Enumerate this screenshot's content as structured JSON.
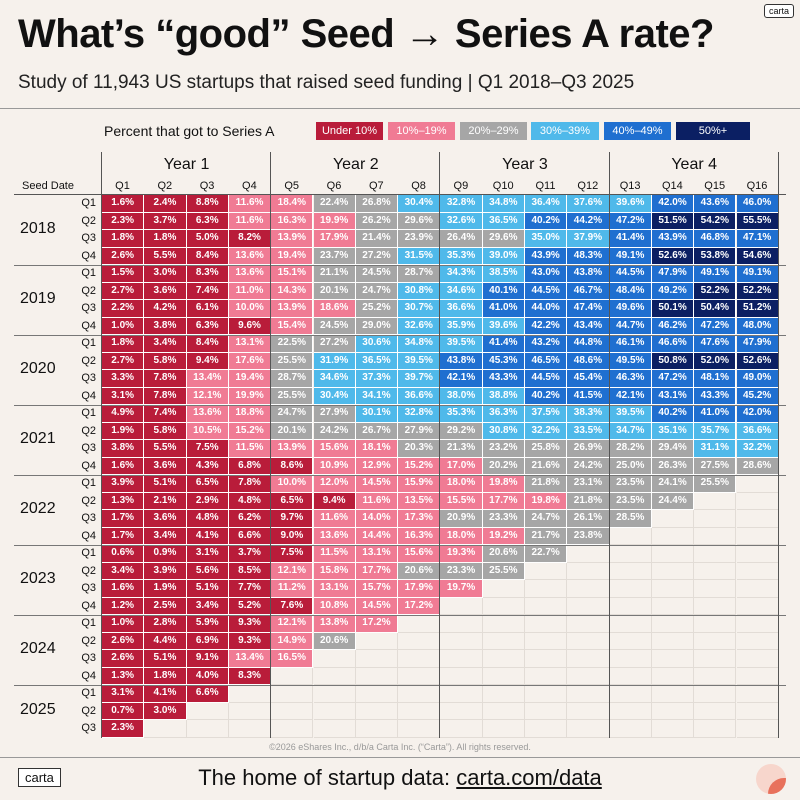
{
  "badge": "carta",
  "title": "What’s “good” Seed → Series A rate?",
  "subtitle": "Study of 11,943 US startups that raised seed funding | Q1 2018–Q3 2025",
  "legend": {
    "label": "Percent that got to Series A",
    "items": [
      {
        "label": "Under 10%",
        "color": "#b91c3a",
        "text": "#ffffff"
      },
      {
        "label": "10%–19%",
        "color": "#f07b94",
        "text": "#ffffff"
      },
      {
        "label": "20%–29%",
        "color": "#a6a6a6",
        "text": "#ffffff"
      },
      {
        "label": "30%–39%",
        "color": "#4fb9ea",
        "text": "#ffffff"
      },
      {
        "label": "40%–49%",
        "color": "#1f6fd0",
        "text": "#ffffff"
      },
      {
        "label": "50%+",
        "color": "#0b1f63",
        "text": "#ffffff"
      }
    ]
  },
  "copyright": "©2026 eShares Inc., d/b/a Carta Inc. (“Carta”). All rights reserved.",
  "footer": {
    "logo_text": "carta",
    "text": "The home of startup data: ",
    "link": "carta.com/data"
  },
  "chart_data": {
    "type": "heatmap",
    "title": "What’s “good” Seed → Series A rate?",
    "row_axis_label": "Seed Date",
    "year_groups": [
      "Year 1",
      "Year 2",
      "Year 3",
      "Year 4"
    ],
    "columns": [
      "Q1",
      "Q2",
      "Q3",
      "Q4",
      "Q5",
      "Q6",
      "Q7",
      "Q8",
      "Q9",
      "Q10",
      "Q11",
      "Q12",
      "Q13",
      "Q14",
      "Q15",
      "Q16"
    ],
    "years": [
      "2018",
      "2019",
      "2020",
      "2021",
      "2022",
      "2023",
      "2024",
      "2025"
    ],
    "rows": [
      {
        "year": "2018",
        "q": "Q1",
        "values": [
          "1.6%",
          "2.4%",
          "8.8%",
          "11.6%",
          "18.4%",
          "22.4%",
          "26.8%",
          "30.4%",
          "32.8%",
          "34.8%",
          "36.4%",
          "37.6%",
          "39.6%",
          "42.0%",
          "43.6%",
          "46.0%"
        ]
      },
      {
        "year": "2018",
        "q": "Q2",
        "values": [
          "2.3%",
          "3.7%",
          "6.3%",
          "11.6%",
          "16.3%",
          "19.9%",
          "26.2%",
          "29.6%",
          "32.6%",
          "36.5%",
          "40.2%",
          "44.2%",
          "47.2%",
          "51.5%",
          "54.2%",
          "55.5%"
        ]
      },
      {
        "year": "2018",
        "q": "Q3",
        "values": [
          "1.8%",
          "1.8%",
          "5.0%",
          "8.2%",
          "13.9%",
          "17.9%",
          "21.4%",
          "23.9%",
          "26.4%",
          "29.6%",
          "35.0%",
          "37.9%",
          "41.4%",
          "43.9%",
          "46.8%",
          "47.1%"
        ]
      },
      {
        "year": "2018",
        "q": "Q4",
        "values": [
          "2.6%",
          "5.5%",
          "8.4%",
          "13.6%",
          "19.4%",
          "23.7%",
          "27.2%",
          "31.5%",
          "35.3%",
          "39.0%",
          "43.9%",
          "48.3%",
          "49.1%",
          "52.6%",
          "53.8%",
          "54.6%"
        ]
      },
      {
        "year": "2019",
        "q": "Q1",
        "values": [
          "1.5%",
          "3.0%",
          "8.3%",
          "13.6%",
          "15.1%",
          "21.1%",
          "24.5%",
          "28.7%",
          "34.3%",
          "38.5%",
          "43.0%",
          "43.8%",
          "44.5%",
          "47.9%",
          "49.1%",
          "49.1%"
        ]
      },
      {
        "year": "2019",
        "q": "Q2",
        "values": [
          "2.7%",
          "3.6%",
          "7.4%",
          "11.0%",
          "14.3%",
          "20.1%",
          "24.7%",
          "30.8%",
          "34.6%",
          "40.1%",
          "44.5%",
          "46.7%",
          "48.4%",
          "49.2%",
          "52.2%",
          "52.2%"
        ]
      },
      {
        "year": "2019",
        "q": "Q3",
        "values": [
          "2.2%",
          "4.2%",
          "6.1%",
          "10.0%",
          "13.9%",
          "18.6%",
          "25.2%",
          "30.7%",
          "36.6%",
          "41.0%",
          "44.0%",
          "47.4%",
          "49.6%",
          "50.1%",
          "50.4%",
          "51.2%"
        ]
      },
      {
        "year": "2019",
        "q": "Q4",
        "values": [
          "1.0%",
          "3.8%",
          "6.3%",
          "9.6%",
          "15.4%",
          "24.5%",
          "29.0%",
          "32.6%",
          "35.9%",
          "39.6%",
          "42.2%",
          "43.4%",
          "44.7%",
          "46.2%",
          "47.2%",
          "48.0%"
        ]
      },
      {
        "year": "2020",
        "q": "Q1",
        "values": [
          "1.8%",
          "3.4%",
          "8.4%",
          "13.1%",
          "22.5%",
          "27.2%",
          "30.6%",
          "34.8%",
          "39.5%",
          "41.4%",
          "43.2%",
          "44.8%",
          "46.1%",
          "46.6%",
          "47.6%",
          "47.9%"
        ]
      },
      {
        "year": "2020",
        "q": "Q2",
        "values": [
          "2.7%",
          "5.8%",
          "9.4%",
          "17.6%",
          "25.5%",
          "31.9%",
          "36.5%",
          "39.5%",
          "43.8%",
          "45.3%",
          "46.5%",
          "48.6%",
          "49.5%",
          "50.8%",
          "52.0%",
          "52.6%"
        ]
      },
      {
        "year": "2020",
        "q": "Q3",
        "values": [
          "3.3%",
          "7.8%",
          "13.4%",
          "19.4%",
          "28.7%",
          "34.6%",
          "37.3%",
          "39.7%",
          "42.1%",
          "43.3%",
          "44.5%",
          "45.4%",
          "46.3%",
          "47.2%",
          "48.1%",
          "49.0%"
        ]
      },
      {
        "year": "2020",
        "q": "Q4",
        "values": [
          "3.1%",
          "7.8%",
          "12.1%",
          "19.9%",
          "25.5%",
          "30.4%",
          "34.1%",
          "36.6%",
          "38.0%",
          "38.8%",
          "40.2%",
          "41.5%",
          "42.1%",
          "43.1%",
          "43.3%",
          "45.2%"
        ]
      },
      {
        "year": "2021",
        "q": "Q1",
        "values": [
          "4.9%",
          "7.4%",
          "13.6%",
          "18.8%",
          "24.7%",
          "27.9%",
          "30.1%",
          "32.8%",
          "35.3%",
          "36.3%",
          "37.5%",
          "38.3%",
          "39.5%",
          "40.2%",
          "41.0%",
          "42.0%"
        ]
      },
      {
        "year": "2021",
        "q": "Q2",
        "values": [
          "1.9%",
          "5.8%",
          "10.5%",
          "15.2%",
          "20.1%",
          "24.2%",
          "26.7%",
          "27.9%",
          "29.2%",
          "30.8%",
          "32.2%",
          "33.5%",
          "34.7%",
          "35.1%",
          "35.7%",
          "36.6%"
        ]
      },
      {
        "year": "2021",
        "q": "Q3",
        "values": [
          "3.8%",
          "5.5%",
          "7.5%",
          "11.5%",
          "13.9%",
          "15.6%",
          "18.1%",
          "20.3%",
          "21.3%",
          "23.2%",
          "25.8%",
          "26.9%",
          "28.2%",
          "29.4%",
          "31.1%",
          "32.2%"
        ]
      },
      {
        "year": "2021",
        "q": "Q4",
        "values": [
          "1.6%",
          "3.6%",
          "4.3%",
          "6.8%",
          "8.6%",
          "10.9%",
          "12.9%",
          "15.2%",
          "17.0%",
          "20.2%",
          "21.6%",
          "24.2%",
          "25.0%",
          "26.3%",
          "27.5%",
          "28.6%"
        ]
      },
      {
        "year": "2022",
        "q": "Q1",
        "values": [
          "3.9%",
          "5.1%",
          "6.5%",
          "7.8%",
          "10.0%",
          "12.0%",
          "14.5%",
          "15.9%",
          "18.0%",
          "19.8%",
          "21.8%",
          "23.1%",
          "23.5%",
          "24.1%",
          "25.5%"
        ]
      },
      {
        "year": "2022",
        "q": "Q2",
        "values": [
          "1.3%",
          "2.1%",
          "2.9%",
          "4.8%",
          "6.5%",
          "9.4%",
          "11.6%",
          "13.5%",
          "15.5%",
          "17.7%",
          "19.8%",
          "21.8%",
          "23.5%",
          "24.4%"
        ]
      },
      {
        "year": "2022",
        "q": "Q3",
        "values": [
          "1.7%",
          "3.6%",
          "4.8%",
          "6.2%",
          "9.7%",
          "11.6%",
          "14.0%",
          "17.3%",
          "20.9%",
          "23.3%",
          "24.7%",
          "26.1%",
          "28.5%"
        ]
      },
      {
        "year": "2022",
        "q": "Q4",
        "values": [
          "1.7%",
          "3.4%",
          "4.1%",
          "6.6%",
          "9.0%",
          "13.6%",
          "14.4%",
          "16.3%",
          "18.0%",
          "19.2%",
          "21.7%",
          "23.8%"
        ]
      },
      {
        "year": "2023",
        "q": "Q1",
        "values": [
          "0.6%",
          "0.9%",
          "3.1%",
          "3.7%",
          "7.5%",
          "11.5%",
          "13.1%",
          "15.6%",
          "19.3%",
          "20.6%",
          "22.7%"
        ]
      },
      {
        "year": "2023",
        "q": "Q2",
        "values": [
          "3.4%",
          "3.9%",
          "5.6%",
          "8.5%",
          "12.1%",
          "15.8%",
          "17.7%",
          "20.6%",
          "23.3%",
          "25.5%"
        ]
      },
      {
        "year": "2023",
        "q": "Q3",
        "values": [
          "1.6%",
          "1.9%",
          "5.1%",
          "7.7%",
          "11.2%",
          "13.1%",
          "15.7%",
          "17.9%",
          "19.7%"
        ]
      },
      {
        "year": "2023",
        "q": "Q4",
        "values": [
          "1.2%",
          "2.5%",
          "3.4%",
          "5.2%",
          "7.6%",
          "10.8%",
          "14.5%",
          "17.2%"
        ]
      },
      {
        "year": "2024",
        "q": "Q1",
        "values": [
          "1.0%",
          "2.8%",
          "5.9%",
          "9.3%",
          "12.1%",
          "13.8%",
          "17.2%"
        ]
      },
      {
        "year": "2024",
        "q": "Q2",
        "values": [
          "2.6%",
          "4.4%",
          "6.9%",
          "9.3%",
          "14.9%",
          "20.6%"
        ]
      },
      {
        "year": "2024",
        "q": "Q3",
        "values": [
          "2.6%",
          "5.1%",
          "9.1%",
          "13.4%",
          "16.5%"
        ]
      },
      {
        "year": "2024",
        "q": "Q4",
        "values": [
          "1.3%",
          "1.8%",
          "4.0%",
          "8.3%"
        ]
      },
      {
        "year": "2025",
        "q": "Q1",
        "values": [
          "3.1%",
          "4.1%",
          "6.6%"
        ]
      },
      {
        "year": "2025",
        "q": "Q2",
        "values": [
          "0.7%",
          "3.0%"
        ]
      },
      {
        "year": "2025",
        "q": "Q3",
        "values": [
          "2.3%"
        ]
      }
    ]
  }
}
